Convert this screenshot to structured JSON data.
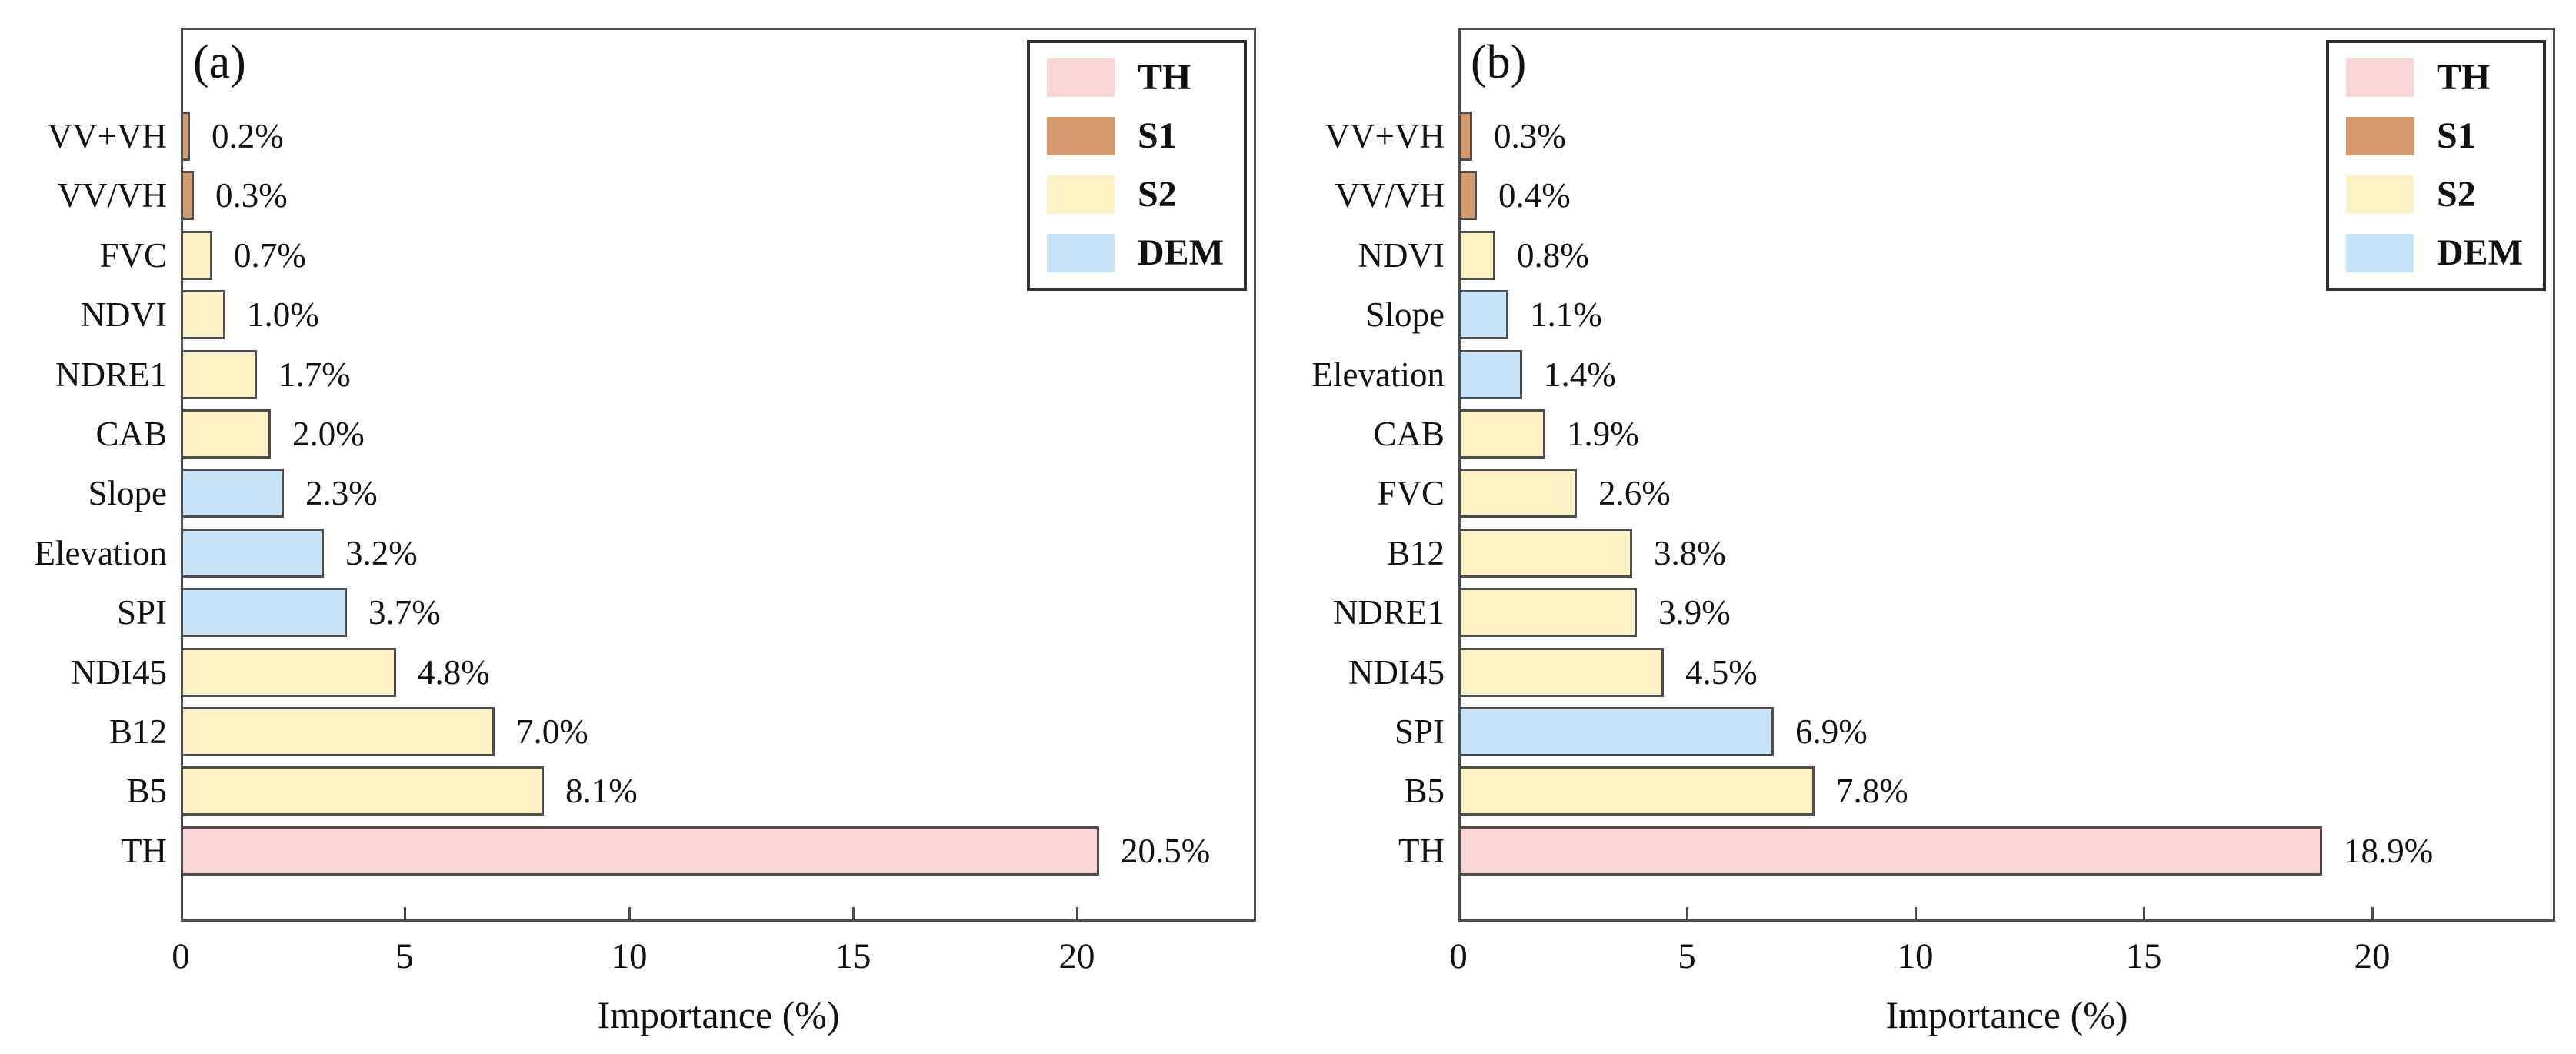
{
  "figure": {
    "background": "#ffffff",
    "text_color": "#111111",
    "bar_border_color": "#4d4d4d",
    "plot_border_color": "#4d4d4d",
    "group_colors": {
      "TH": "#f8d6d5",
      "S1": "#d59a6b",
      "S2": "#fcf2c5",
      "DEM": "#c8e2f6"
    }
  },
  "chart_data": [
    {
      "type": "bar",
      "orientation": "horizontal",
      "panel_label": "(a)",
      "xlabel": "Importance (%)",
      "xlim": [
        0,
        24
      ],
      "xticks": [
        "0",
        "5",
        "10",
        "15",
        "20"
      ],
      "xtick_values": [
        0,
        5,
        10,
        15,
        20
      ],
      "grid": false,
      "legend_position": "top-right",
      "legend": [
        {
          "label": "TH",
          "color_key": "TH"
        },
        {
          "label": "S1",
          "color_key": "S1"
        },
        {
          "label": "S2",
          "color_key": "S2"
        },
        {
          "label": "DEM",
          "color_key": "DEM"
        }
      ],
      "bars": [
        {
          "category": "VV+VH",
          "value": 0.2,
          "label": "0.2%",
          "group": "S1"
        },
        {
          "category": "VV/VH",
          "value": 0.3,
          "label": "0.3%",
          "group": "S1"
        },
        {
          "category": "FVC",
          "value": 0.7,
          "label": "0.7%",
          "group": "S2"
        },
        {
          "category": "NDVI",
          "value": 1.0,
          "label": "1.0%",
          "group": "S2"
        },
        {
          "category": "NDRE1",
          "value": 1.7,
          "label": "1.7%",
          "group": "S2"
        },
        {
          "category": "CAB",
          "value": 2.0,
          "label": "2.0%",
          "group": "S2"
        },
        {
          "category": "Slope",
          "value": 2.3,
          "label": "2.3%",
          "group": "DEM"
        },
        {
          "category": "Elevation",
          "value": 3.2,
          "label": "3.2%",
          "group": "DEM"
        },
        {
          "category": "SPI",
          "value": 3.7,
          "label": "3.7%",
          "group": "DEM"
        },
        {
          "category": "NDI45",
          "value": 4.8,
          "label": "4.8%",
          "group": "S2"
        },
        {
          "category": "B12",
          "value": 7.0,
          "label": "7.0%",
          "group": "S2"
        },
        {
          "category": "B5",
          "value": 8.1,
          "label": "8.1%",
          "group": "S2"
        },
        {
          "category": "TH",
          "value": 20.5,
          "label": "20.5%",
          "group": "TH"
        }
      ]
    },
    {
      "type": "bar",
      "orientation": "horizontal",
      "panel_label": "(b)",
      "xlabel": "Importance (%)",
      "xlim": [
        0,
        24
      ],
      "xticks": [
        "0",
        "5",
        "10",
        "15",
        "20"
      ],
      "xtick_values": [
        0,
        5,
        10,
        15,
        20
      ],
      "grid": false,
      "legend_position": "top-right",
      "legend": [
        {
          "label": "TH",
          "color_key": "TH"
        },
        {
          "label": "S1",
          "color_key": "S1"
        },
        {
          "label": "S2",
          "color_key": "S2"
        },
        {
          "label": "DEM",
          "color_key": "DEM"
        }
      ],
      "bars": [
        {
          "category": "VV+VH",
          "value": 0.3,
          "label": "0.3%",
          "group": "S1"
        },
        {
          "category": "VV/VH",
          "value": 0.4,
          "label": "0.4%",
          "group": "S1"
        },
        {
          "category": "NDVI",
          "value": 0.8,
          "label": "0.8%",
          "group": "S2"
        },
        {
          "category": "Slope",
          "value": 1.1,
          "label": "1.1%",
          "group": "DEM"
        },
        {
          "category": "Elevation",
          "value": 1.4,
          "label": "1.4%",
          "group": "DEM"
        },
        {
          "category": "CAB",
          "value": 1.9,
          "label": "1.9%",
          "group": "S2"
        },
        {
          "category": "FVC",
          "value": 2.6,
          "label": "2.6%",
          "group": "S2"
        },
        {
          "category": "B12",
          "value": 3.8,
          "label": "3.8%",
          "group": "S2"
        },
        {
          "category": "NDRE1",
          "value": 3.9,
          "label": "3.9%",
          "group": "S2"
        },
        {
          "category": "NDI45",
          "value": 4.5,
          "label": "4.5%",
          "group": "S2"
        },
        {
          "category": "SPI",
          "value": 6.9,
          "label": "6.9%",
          "group": "DEM"
        },
        {
          "category": "B5",
          "value": 7.8,
          "label": "7.8%",
          "group": "S2"
        },
        {
          "category": "TH",
          "value": 18.9,
          "label": "18.9%",
          "group": "TH"
        }
      ]
    }
  ]
}
